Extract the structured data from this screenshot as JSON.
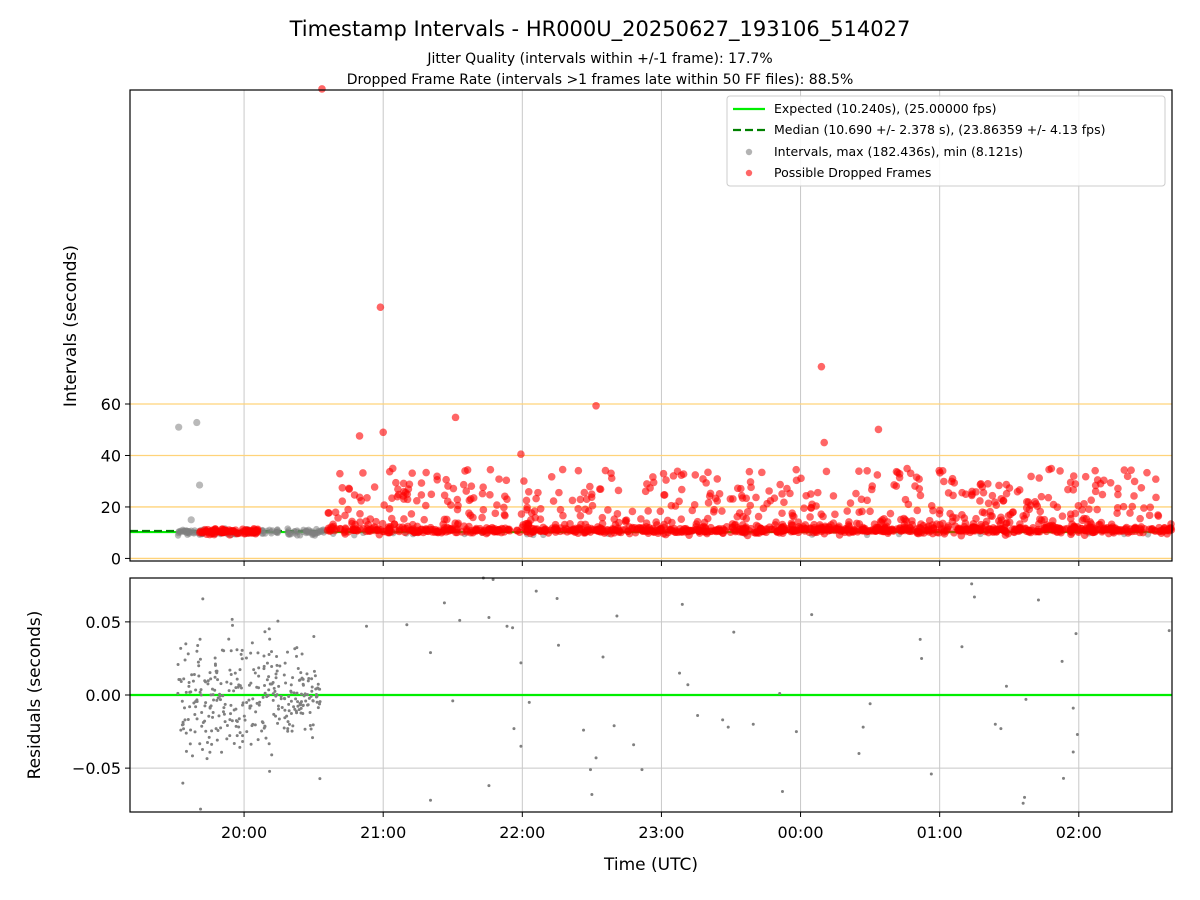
{
  "chart_data": [
    {
      "type": "scatter",
      "panel": "intervals",
      "title": "Timestamp Intervals - HR000U_20250627_193106_514027",
      "subtitles": [
        "Jitter Quality (intervals within +/-1 frame): 17.7%",
        "Dropped Frame Rate (intervals >1 frames late within 50 FF files): 88.5%"
      ],
      "ylabel": "Intervals (seconds)",
      "x_range_hours": [
        19.18,
        26.67
      ],
      "ylim": [
        -1,
        182
      ],
      "yticks": [
        0,
        20,
        40,
        60
      ],
      "ytick_labels": [
        "0",
        "20",
        "40",
        "60"
      ],
      "reference_lines": [
        0,
        20,
        40,
        60
      ],
      "reference_line_color": "#ffd37a",
      "grid": true,
      "legend_position": "top-right",
      "expected": {
        "label": "Expected (10.240s), (25.00000 fps)",
        "value": 10.24,
        "color": "#00ee00"
      },
      "median": {
        "label": "Median (10.690 +/- 2.378 s), (23.86359 +/- 4.13 fps)",
        "value": 10.69,
        "color": "#008000",
        "x_start": 19.18,
        "x_end": 20.56
      },
      "intervals_series": {
        "label": "Intervals, max (182.436s), min (8.121s)",
        "color": "#808080"
      },
      "dropped_series": {
        "label": "Possible Dropped Frames",
        "color": "#ff0000"
      },
      "notable_points": [
        {
          "x": 20.56,
          "y": 182.4,
          "series": "dropped"
        },
        {
          "x": 20.98,
          "y": 97.6,
          "series": "dropped"
        },
        {
          "x": 24.15,
          "y": 74.5,
          "series": "dropped"
        },
        {
          "x": 22.53,
          "y": 59.3,
          "series": "dropped"
        },
        {
          "x": 21.52,
          "y": 54.8,
          "series": "dropped"
        },
        {
          "x": 24.56,
          "y": 50.1,
          "series": "dropped"
        },
        {
          "x": 24.17,
          "y": 45.0,
          "series": "dropped"
        },
        {
          "x": 21.99,
          "y": 40.5,
          "series": "dropped"
        },
        {
          "x": 21.0,
          "y": 49.0,
          "series": "dropped"
        },
        {
          "x": 20.83,
          "y": 47.6,
          "series": "dropped"
        },
        {
          "x": 19.53,
          "y": 51.0,
          "series": "interval"
        },
        {
          "x": 19.66,
          "y": 52.8,
          "series": "interval"
        },
        {
          "x": 19.68,
          "y": 28.5,
          "series": "interval"
        },
        {
          "x": 19.62,
          "y": 15.0,
          "series": "interval"
        }
      ]
    },
    {
      "type": "scatter",
      "panel": "residuals",
      "xlabel": "Time (UTC)",
      "ylabel": "Residuals (seconds)",
      "x_range_hours": [
        19.18,
        26.67
      ],
      "ylim": [
        -0.08,
        0.08
      ],
      "yticks": [
        -0.05,
        0.0,
        0.05
      ],
      "ytick_labels": [
        "−0.05",
        "0.00",
        "0.05"
      ],
      "xticks_hours": [
        20,
        21,
        22,
        23,
        24,
        25,
        26
      ],
      "xtick_labels": [
        "20:00",
        "21:00",
        "22:00",
        "23:00",
        "00:00",
        "01:00",
        "02:00"
      ],
      "zero_line": {
        "value": 0.0,
        "color": "#00ee00"
      },
      "grid": true,
      "point_color": "#808080",
      "sparse_points": [
        [
          20.88,
          0.047
        ],
        [
          21.17,
          0.048
        ],
        [
          21.34,
          0.029
        ],
        [
          21.34,
          -0.072
        ],
        [
          21.44,
          0.063
        ],
        [
          21.5,
          -0.004
        ],
        [
          21.55,
          0.051
        ],
        [
          21.72,
          0.08
        ],
        [
          21.76,
          0.053
        ],
        [
          21.76,
          -0.062
        ],
        [
          21.79,
          0.079
        ],
        [
          21.89,
          0.047
        ],
        [
          21.93,
          0.046
        ],
        [
          21.94,
          -0.023
        ],
        [
          21.99,
          0.022
        ],
        [
          21.99,
          -0.035
        ],
        [
          22.05,
          -0.005
        ],
        [
          22.1,
          0.071
        ],
        [
          22.25,
          0.066
        ],
        [
          22.26,
          0.034
        ],
        [
          22.44,
          -0.024
        ],
        [
          22.49,
          -0.051
        ],
        [
          22.5,
          -0.068
        ],
        [
          22.53,
          -0.043
        ],
        [
          22.58,
          0.026
        ],
        [
          22.66,
          -0.021
        ],
        [
          22.68,
          0.054
        ],
        [
          22.8,
          -0.034
        ],
        [
          22.86,
          -0.051
        ],
        [
          23.13,
          0.015
        ],
        [
          23.15,
          0.062
        ],
        [
          23.19,
          0.007
        ],
        [
          23.26,
          -0.014
        ],
        [
          23.44,
          -0.017
        ],
        [
          23.48,
          -0.022
        ],
        [
          23.52,
          0.043
        ],
        [
          23.66,
          -0.02
        ],
        [
          23.85,
          0.001
        ],
        [
          23.87,
          -0.066
        ],
        [
          23.97,
          -0.025
        ],
        [
          24.08,
          0.055
        ],
        [
          24.42,
          -0.04
        ],
        [
          24.45,
          -0.022
        ],
        [
          24.5,
          -0.006
        ],
        [
          24.86,
          0.038
        ],
        [
          24.87,
          0.025
        ],
        [
          24.94,
          -0.054
        ],
        [
          25.16,
          0.033
        ],
        [
          25.23,
          0.076
        ],
        [
          25.25,
          0.067
        ],
        [
          25.4,
          -0.02
        ],
        [
          25.44,
          -0.023
        ],
        [
          25.48,
          0.006
        ],
        [
          25.6,
          -0.074
        ],
        [
          25.61,
          -0.07
        ],
        [
          25.62,
          -0.003
        ],
        [
          25.71,
          0.065
        ],
        [
          25.88,
          0.023
        ],
        [
          25.89,
          -0.057
        ],
        [
          25.96,
          -0.009
        ],
        [
          25.96,
          -0.039
        ],
        [
          25.98,
          0.042
        ],
        [
          25.99,
          -0.027
        ],
        [
          26.65,
          0.044
        ]
      ]
    }
  ]
}
